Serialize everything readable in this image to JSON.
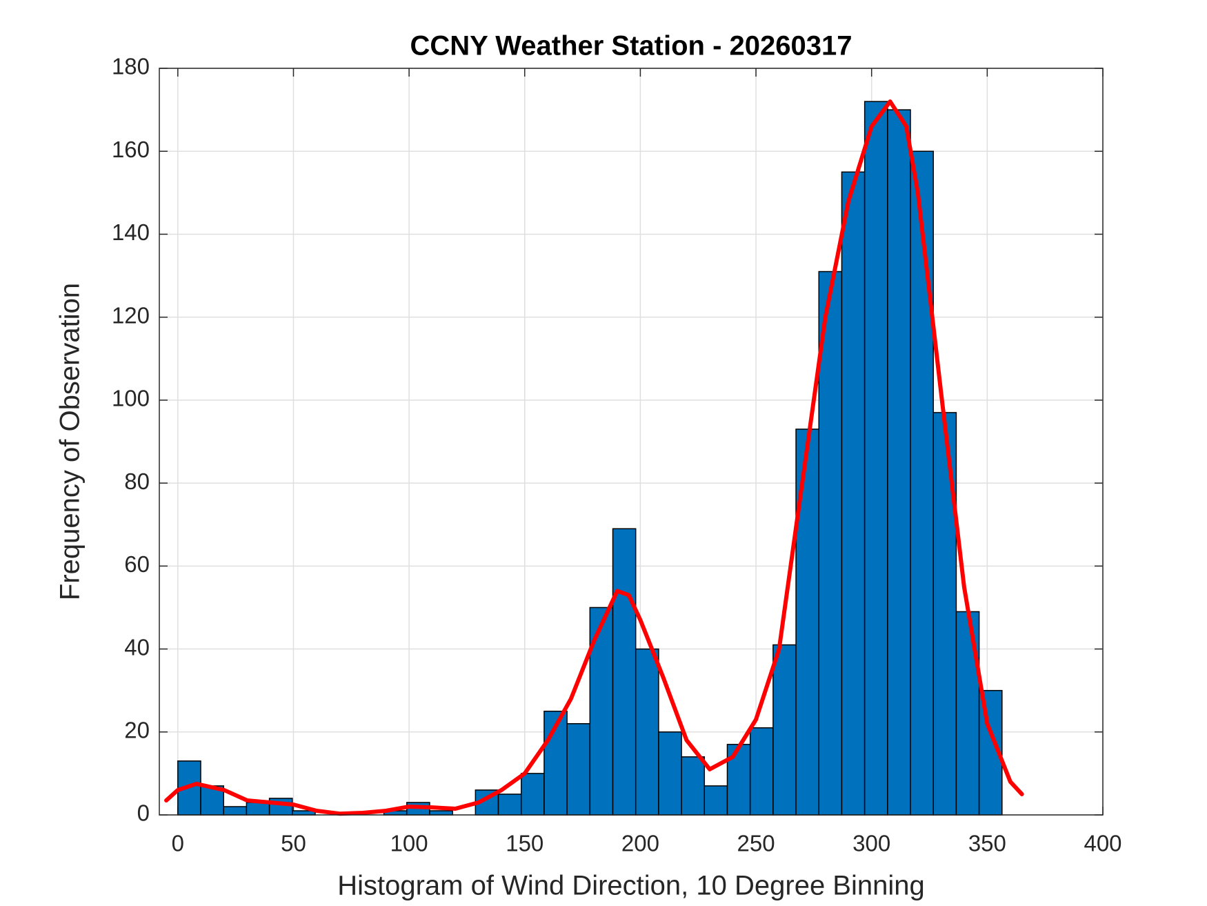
{
  "chart_data": {
    "type": "histogram",
    "title": "CCNY Weather Station - 20260317",
    "xlabel": "Histogram of Wind Direction, 10 Degree Binning",
    "ylabel": "Frequency of Observation",
    "bins": [
      0,
      9.9,
      19.8,
      29.7,
      39.6,
      49.5,
      59.4,
      69.3,
      79.2,
      89.1,
      99,
      108.9,
      118.8,
      128.7,
      138.6,
      148.5,
      158.4,
      168.3,
      178.2,
      188.1,
      198,
      207.9,
      217.8,
      227.7,
      237.6,
      247.5,
      257.4,
      267.3,
      277.2,
      287.1,
      297,
      306.9,
      316.8,
      326.7,
      336.6,
      346.5,
      356.4
    ],
    "values": [
      13,
      7,
      2,
      3,
      4,
      1,
      0,
      0,
      0,
      1,
      3,
      1,
      0,
      6,
      5,
      10,
      25,
      22,
      50,
      69,
      40,
      20,
      14,
      7,
      17,
      21,
      41,
      93,
      131,
      155,
      172,
      170,
      160,
      97,
      49,
      30
    ],
    "color": "#0072bd",
    "fit": {
      "color": "#ff0000",
      "x": [
        -5,
        0,
        8,
        20,
        30,
        40,
        50,
        60,
        70,
        80,
        90,
        100,
        110,
        120,
        130,
        140,
        150,
        160,
        170,
        180,
        190,
        195,
        200,
        210,
        220,
        230,
        240,
        250,
        260,
        270,
        280,
        290,
        300,
        308,
        315,
        320,
        330,
        340,
        350,
        360,
        365
      ],
      "values": [
        3.5,
        6,
        7.5,
        6,
        3.5,
        3,
        2.5,
        1,
        0.3,
        0.5,
        1,
        2,
        1.8,
        1.5,
        3,
        6,
        10,
        18,
        28,
        42,
        54,
        53,
        47,
        33,
        18,
        11,
        14,
        23,
        40,
        80,
        120,
        148,
        166,
        172,
        166,
        150,
        102,
        55,
        22,
        8,
        5
      ]
    },
    "xlim": [
      -8,
      400
    ],
    "xticks": [
      0,
      50,
      100,
      150,
      200,
      250,
      300,
      350,
      400
    ],
    "ylim": [
      0,
      180
    ],
    "yticks": [
      0,
      20,
      40,
      60,
      80,
      100,
      120,
      140,
      160,
      180
    ],
    "grid": true
  }
}
